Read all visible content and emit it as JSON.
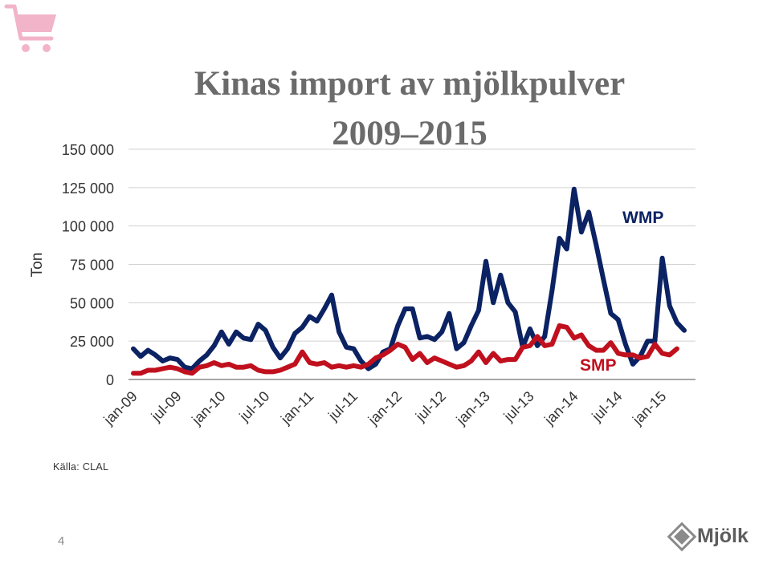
{
  "slide": {
    "title_line1": "Kinas import av mjölkpulver",
    "title_line2": "2009–2015",
    "source": "Källa: CLAL",
    "page_number": "4",
    "logo_text": "Mjölk",
    "logo_icon": "mjolk-logo-icon",
    "corner_icon": "shopping-cart-icon"
  },
  "colors": {
    "wmp": "#0b2263",
    "smp": "#c0101e",
    "axis_text": "#333333",
    "title": "#6b6b6b",
    "cart": "#f2b4c8",
    "grid": "#d0d0d0"
  },
  "chart_data": {
    "type": "line",
    "ylabel": "Ton",
    "ylim": [
      0,
      150000
    ],
    "y_ticks": [
      0,
      25000,
      50000,
      75000,
      100000,
      125000,
      150000
    ],
    "y_tick_labels": [
      "0",
      "25 000",
      "50 000",
      "75 000",
      "100 000",
      "125 000",
      "150 000"
    ],
    "x_tick_labels": [
      "jan-09",
      "jul-09",
      "jan-10",
      "jul-10",
      "jan-11",
      "jul-11",
      "jan-12",
      "jul-12",
      "jan-13",
      "jul-13",
      "jan-14",
      "jul-14",
      "jan-15"
    ],
    "x_tick_positions": [
      0,
      6,
      12,
      18,
      24,
      30,
      36,
      42,
      48,
      54,
      60,
      66,
      72
    ],
    "grid": "horizontal",
    "series": [
      {
        "name": "WMP",
        "color": "#0b2263",
        "values": [
          20000,
          15000,
          19000,
          16000,
          12000,
          14000,
          13000,
          8000,
          7000,
          12000,
          16000,
          22000,
          31000,
          23000,
          31000,
          27000,
          26000,
          36000,
          32000,
          21000,
          14000,
          20000,
          30000,
          34000,
          41000,
          38000,
          46000,
          55000,
          31000,
          21000,
          20000,
          12000,
          7000,
          10000,
          18000,
          20000,
          35000,
          46000,
          46000,
          27000,
          28000,
          26000,
          31000,
          43000,
          20000,
          24000,
          35000,
          45000,
          77000,
          50000,
          68000,
          50000,
          44000,
          21000,
          33000,
          22000,
          28000,
          58000,
          92000,
          85000,
          124000,
          96000,
          109000,
          88000,
          65000,
          43000,
          39000,
          23000,
          10000,
          15000,
          25000,
          25000,
          79000,
          48000,
          37000,
          32000
        ]
      },
      {
        "name": "SMP",
        "color": "#c0101e",
        "values": [
          4000,
          4000,
          6000,
          6000,
          7000,
          8000,
          7000,
          5000,
          4000,
          8000,
          9000,
          11000,
          9000,
          10000,
          8000,
          8000,
          9000,
          6000,
          5000,
          5000,
          6000,
          8000,
          10000,
          18000,
          11000,
          10000,
          11000,
          8000,
          9000,
          8000,
          9000,
          8000,
          10000,
          14000,
          16000,
          19000,
          23000,
          21000,
          13000,
          17000,
          11000,
          14000,
          12000,
          10000,
          8000,
          9000,
          12000,
          18000,
          11000,
          17000,
          12000,
          13000,
          13000,
          21000,
          22000,
          28000,
          22000,
          23000,
          35000,
          34000,
          27000,
          29000,
          22000,
          19000,
          19000,
          24000,
          17000,
          16000,
          16000,
          14000,
          15000,
          23000,
          17000,
          16000,
          20000
        ]
      }
    ]
  }
}
